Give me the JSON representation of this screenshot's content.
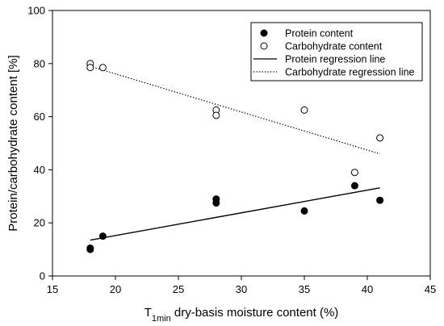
{
  "chart_data": {
    "type": "scatter",
    "title": "",
    "xlabel": {
      "prefix": "T",
      "subscript": "1min",
      "suffix": " dry-basis moisture content (%)"
    },
    "ylabel": "Protein/carbohydrate content [%]",
    "xlim": [
      15,
      45
    ],
    "ylim": [
      0,
      100
    ],
    "xticks": [
      15,
      20,
      25,
      30,
      35,
      40,
      45
    ],
    "yticks": [
      0,
      20,
      40,
      60,
      80,
      100
    ],
    "grid": false,
    "legend_position": "top-right",
    "series": [
      {
        "name": "Protein content",
        "kind": "points",
        "marker": "filled-circle",
        "color": "#000000",
        "points": [
          {
            "x": 18,
            "y": 10.5
          },
          {
            "x": 18,
            "y": 10.0
          },
          {
            "x": 19,
            "y": 15.0
          },
          {
            "x": 28,
            "y": 29.0
          },
          {
            "x": 28,
            "y": 27.5
          },
          {
            "x": 35,
            "y": 24.5
          },
          {
            "x": 39,
            "y": 34.0
          },
          {
            "x": 41,
            "y": 28.5
          }
        ]
      },
      {
        "name": "Carbohydrate content",
        "kind": "points",
        "marker": "open-circle",
        "color": "#000000",
        "points": [
          {
            "x": 18,
            "y": 80.0
          },
          {
            "x": 18,
            "y": 78.5
          },
          {
            "x": 19,
            "y": 78.5
          },
          {
            "x": 28,
            "y": 62.5
          },
          {
            "x": 28,
            "y": 60.5
          },
          {
            "x": 35,
            "y": 62.5
          },
          {
            "x": 39,
            "y": 39.0
          },
          {
            "x": 41,
            "y": 52.0
          }
        ]
      },
      {
        "name": "Protein regression line",
        "kind": "line",
        "style": "solid",
        "color": "#000000",
        "points": [
          {
            "x": 18,
            "y": 13.5
          },
          {
            "x": 41,
            "y": 33.2
          }
        ]
      },
      {
        "name": "Carbohydrate regression line",
        "kind": "line",
        "style": "dotted",
        "color": "#000000",
        "points": [
          {
            "x": 18,
            "y": 79.0
          },
          {
            "x": 41,
            "y": 46.0
          }
        ]
      }
    ]
  }
}
